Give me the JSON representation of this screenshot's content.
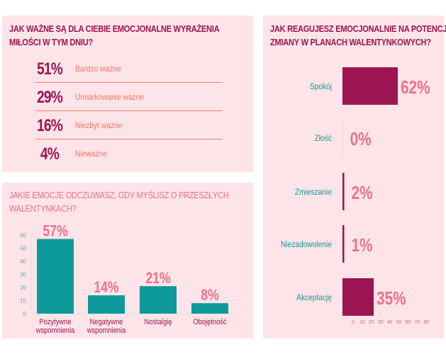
{
  "colors": {
    "panel": "#fde4e8",
    "dark": "#9c1452",
    "salmon": "#ef7860",
    "pink": "#f0708a",
    "teal": "#0e9a9a"
  },
  "panel1": {
    "title_line1": "JAK WAŻNE SĄ DLA CIEBIE EMOCJONALNE WYRAŻENIA",
    "title_line2": "MIŁOŚCI W TYM DNIU?",
    "stats": [
      {
        "value": "51%",
        "label": "Bardzo ważne"
      },
      {
        "value": "29%",
        "label": "Umiarkowanie ważne"
      },
      {
        "value": "16%",
        "label": "Niezbyt ważne"
      },
      {
        "value": "4%",
        "label": "Nieważne"
      }
    ]
  },
  "chart_data": [
    {
      "type": "bar",
      "title": "JAKIE EMOCJE ODCZUWASZ, GDY MYŚLISZ O PRZESZŁYCH WALENTYNKACH?",
      "title_line1": "JAKIE EMOCJE ODCZUWASZ, GDY MYŚLISZ O PRZESZŁYCH",
      "title_line2": "WALENTYNKACH?",
      "categories": [
        [
          "Pozytywne",
          "wspomnienia"
        ],
        [
          "Negatywne",
          "wspomnienia"
        ],
        [
          "Nostalgię"
        ],
        [
          "Obojętność"
        ]
      ],
      "values": [
        57,
        14,
        21,
        8
      ],
      "data_labels": [
        "57%",
        "14%",
        "21%",
        "8%"
      ],
      "ylim": [
        0,
        60
      ],
      "yticks": [
        "0",
        "10",
        "20",
        "30",
        "40",
        "50",
        "60"
      ],
      "grid": false
    },
    {
      "type": "bar",
      "orientation": "horizontal",
      "title": "JAK REAGUJESZ EMOCJONALNIE NA POTENCJALNE ZMIANY W PLANACH WALENTYNKOWYCH?",
      "title_line1": "JAK REAGUJESZ EMOCJONALNIE NA POTENCJALNE",
      "title_line2": "ZMIANY W PLANACH WALENTYNKOWYCH?",
      "categories": [
        "Spokój",
        "Złość",
        "Zmieszanie",
        "Niezadowolenie",
        "Akceptację"
      ],
      "values": [
        62,
        0,
        2,
        1,
        35
      ],
      "data_labels": [
        "62%",
        "0%",
        "2%",
        "1%",
        "35%"
      ],
      "xlim": [
        0,
        80
      ],
      "xticks": [
        "0",
        "10",
        "20",
        "30",
        "40",
        "50",
        "60",
        "70",
        "80"
      ],
      "grid": false
    }
  ]
}
